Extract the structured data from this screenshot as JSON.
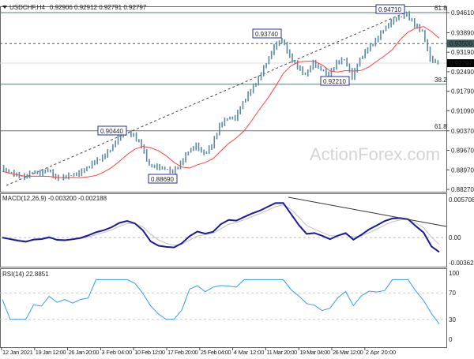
{
  "header": {
    "symbol": "USDCHF,H4",
    "ohlc": "0.92906 0.92912 0.92791 0.92797"
  },
  "watermark": "ActionForex.com",
  "colors": {
    "price": "#5b8aa6",
    "ma": "#ff4040",
    "macd": "#1a1a9a",
    "signal": "#c0c0c0",
    "rsi": "#3399ff",
    "label_border": "#2a2aa0"
  },
  "chart_data": [
    {
      "type": "line",
      "name": "USDCHF H4 price",
      "ylim": [
        0.8827,
        0.9461
      ],
      "y_ticks": [
        "0.94610",
        "0.93890",
        "0.93190",
        "0.92490",
        "0.91790",
        "0.91090",
        "0.90370",
        "0.89670",
        "0.88970",
        "0.88270"
      ],
      "x_ticks": [
        "12 Jan 2021",
        "19 Jan 12:00",
        "26 Jan 20:00",
        "3 Feb 04:00",
        "10 Feb 12:00",
        "17 Feb 20:00",
        "25 Feb 04:00",
        "4 Mar 12:00",
        "11 Mar 20:00",
        "19 Mar 04:00",
        "26 Mar 12:00",
        "2 Apr 20:00"
      ],
      "values": [
        0.8903,
        0.8889,
        0.8878,
        0.887,
        0.8889,
        0.8884,
        0.8898,
        0.8867,
        0.887,
        0.8878,
        0.8884,
        0.8903,
        0.8926,
        0.894,
        0.8969,
        0.9011,
        0.9031,
        0.902,
        0.8983,
        0.8912,
        0.8906,
        0.8901,
        0.8889,
        0.8918,
        0.8963,
        0.8983,
        0.8954,
        0.8983,
        0.9054,
        0.9082,
        0.9082,
        0.9138,
        0.9181,
        0.9223,
        0.928,
        0.9337,
        0.9365,
        0.9303,
        0.9266,
        0.9237,
        0.928,
        0.9257,
        0.9237,
        0.928,
        0.9294,
        0.9229,
        0.9294,
        0.9331,
        0.9359,
        0.9399,
        0.9427,
        0.9444,
        0.9455,
        0.9416,
        0.9393,
        0.9294,
        0.92797
      ],
      "annotations": [
        {
          "text": "0.94710",
          "price": 0.9471
        },
        {
          "text": "0.93740",
          "price": 0.9374
        },
        {
          "text": "0.92210",
          "price": 0.9221
        },
        {
          "text": "0.90440",
          "price": 0.9044
        },
        {
          "text": "0.88690",
          "price": 0.8869
        }
      ],
      "levels": [
        {
          "text": "61.8",
          "price": 0.9461
        },
        {
          "text": "38.2",
          "price": 0.9204
        },
        {
          "text": "61.8",
          "price": 0.9037
        }
      ],
      "marked_level": "0.93500",
      "current_price": "0.92797"
    },
    {
      "type": "line",
      "name": "MACD(12,26,9) -0.003200 -0.002188",
      "ylim": [
        -0.003624,
        0.005708
      ],
      "y_ticks": [
        "0.005708",
        "0.00",
        "-0.003624"
      ]
    },
    {
      "type": "line",
      "name": "RSI(14) 22.8851",
      "ylim": [
        0,
        100
      ],
      "y_ticks": [
        "100",
        "70",
        "30",
        "0"
      ]
    }
  ]
}
